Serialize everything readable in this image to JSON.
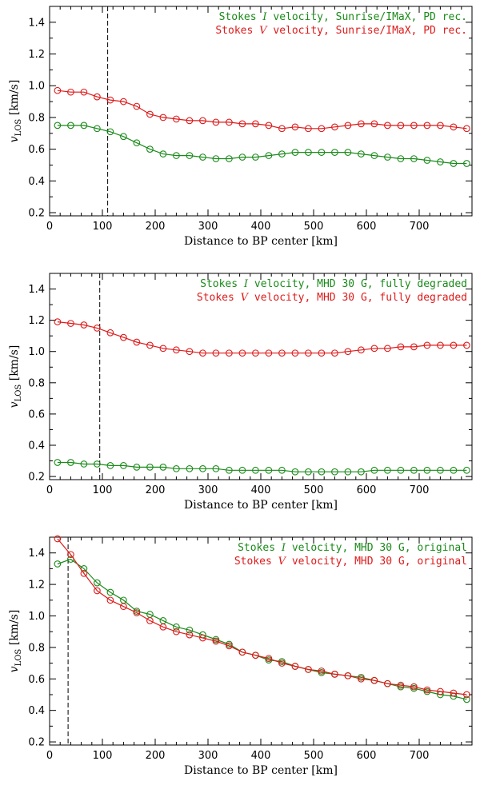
{
  "colors": {
    "green": "#1a8a1a",
    "red": "#dd1a1a",
    "axis": "#000000"
  },
  "chart_data": [
    {
      "type": "line",
      "title": "",
      "xlabel": "Distance to BP center [km]",
      "ylabel": "v_LOS [km/s]",
      "xlim": [
        0,
        800
      ],
      "ylim": [
        0.18,
        1.5
      ],
      "xticks": [
        0,
        100,
        200,
        300,
        400,
        500,
        600,
        700
      ],
      "yticks": [
        0.2,
        0.4,
        0.6,
        0.8,
        1.0,
        1.2,
        1.4
      ],
      "ytick_labels": [
        "0.2",
        "0.4",
        "0.6",
        "0.8",
        "1.0",
        "1.2",
        "1.4"
      ],
      "vline_x": 110,
      "legend_position": "top-right",
      "x": [
        15,
        40,
        65,
        90,
        115,
        140,
        165,
        190,
        215,
        240,
        265,
        290,
        315,
        340,
        365,
        390,
        415,
        440,
        465,
        490,
        515,
        540,
        565,
        590,
        615,
        640,
        665,
        690,
        715,
        740,
        765,
        790
      ],
      "series": [
        {
          "name": "Stokes I velocity, Sunrise/IMaX, PD rec.",
          "name_parts": [
            "Stokes ",
            "I",
            " velocity, Sunrise/IMaX, PD rec."
          ],
          "color": "green",
          "values": [
            0.75,
            0.75,
            0.75,
            0.73,
            0.71,
            0.68,
            0.64,
            0.6,
            0.57,
            0.56,
            0.56,
            0.55,
            0.54,
            0.54,
            0.55,
            0.55,
            0.56,
            0.57,
            0.58,
            0.58,
            0.58,
            0.58,
            0.58,
            0.57,
            0.56,
            0.55,
            0.54,
            0.54,
            0.53,
            0.52,
            0.51,
            0.51
          ]
        },
        {
          "name": "Stokes V velocity, Sunrise/IMaX, PD rec.",
          "name_parts": [
            "Stokes ",
            "V",
            " velocity, Sunrise/IMaX, PD rec."
          ],
          "color": "red",
          "values": [
            0.97,
            0.96,
            0.96,
            0.93,
            0.91,
            0.9,
            0.87,
            0.82,
            0.8,
            0.79,
            0.78,
            0.78,
            0.77,
            0.77,
            0.76,
            0.76,
            0.75,
            0.73,
            0.74,
            0.73,
            0.73,
            0.74,
            0.75,
            0.76,
            0.76,
            0.75,
            0.75,
            0.75,
            0.75,
            0.75,
            0.74,
            0.73
          ]
        }
      ]
    },
    {
      "type": "line",
      "title": "",
      "xlabel": "Distance to BP center [km]",
      "ylabel": "v_LOS [km/s]",
      "xlim": [
        0,
        800
      ],
      "ylim": [
        0.18,
        1.5
      ],
      "xticks": [
        0,
        100,
        200,
        300,
        400,
        500,
        600,
        700
      ],
      "yticks": [
        0.2,
        0.4,
        0.6,
        0.8,
        1.0,
        1.2,
        1.4
      ],
      "ytick_labels": [
        "0.2",
        "0.4",
        "0.6",
        "0.8",
        "1.0",
        "1.2",
        "1.4"
      ],
      "vline_x": 95,
      "legend_position": "top-right",
      "x": [
        15,
        40,
        65,
        90,
        115,
        140,
        165,
        190,
        215,
        240,
        265,
        290,
        315,
        340,
        365,
        390,
        415,
        440,
        465,
        490,
        515,
        540,
        565,
        590,
        615,
        640,
        665,
        690,
        715,
        740,
        765,
        790
      ],
      "series": [
        {
          "name": "Stokes I velocity, MHD 30 G, fully degraded",
          "name_parts": [
            "Stokes ",
            "I",
            " velocity, MHD 30 G, fully degraded"
          ],
          "color": "green",
          "values": [
            0.29,
            0.29,
            0.28,
            0.28,
            0.27,
            0.27,
            0.26,
            0.26,
            0.26,
            0.25,
            0.25,
            0.25,
            0.25,
            0.24,
            0.24,
            0.24,
            0.24,
            0.24,
            0.23,
            0.23,
            0.23,
            0.23,
            0.23,
            0.23,
            0.24,
            0.24,
            0.24,
            0.24,
            0.24,
            0.24,
            0.24,
            0.24
          ]
        },
        {
          "name": "Stokes V velocity, MHD 30 G, fully degraded",
          "name_parts": [
            "Stokes ",
            "V",
            " velocity, MHD 30 G, fully degraded"
          ],
          "color": "red",
          "values": [
            1.19,
            1.18,
            1.17,
            1.15,
            1.12,
            1.09,
            1.06,
            1.04,
            1.02,
            1.01,
            1.0,
            0.99,
            0.99,
            0.99,
            0.99,
            0.99,
            0.99,
            0.99,
            0.99,
            0.99,
            0.99,
            0.99,
            1.0,
            1.01,
            1.02,
            1.02,
            1.03,
            1.03,
            1.04,
            1.04,
            1.04,
            1.04
          ]
        }
      ]
    },
    {
      "type": "line",
      "title": "",
      "xlabel": "Distance to BP center [km]",
      "ylabel": "v_LOS [km/s]",
      "xlim": [
        0,
        800
      ],
      "ylim": [
        0.18,
        1.5
      ],
      "xticks": [
        0,
        100,
        200,
        300,
        400,
        500,
        600,
        700
      ],
      "yticks": [
        0.2,
        0.4,
        0.6,
        0.8,
        1.0,
        1.2,
        1.4
      ],
      "ytick_labels": [
        "0.2",
        "0.4",
        "0.6",
        "0.8",
        "1.0",
        "1.2",
        "1.4"
      ],
      "vline_x": 35,
      "legend_position": "top-right",
      "x": [
        15,
        40,
        65,
        90,
        115,
        140,
        165,
        190,
        215,
        240,
        265,
        290,
        315,
        340,
        365,
        390,
        415,
        440,
        465,
        490,
        515,
        540,
        565,
        590,
        615,
        640,
        665,
        690,
        715,
        740,
        765,
        790
      ],
      "series": [
        {
          "name": "Stokes I velocity, MHD 30 G, original",
          "name_parts": [
            "Stokes ",
            "I",
            " velocity, MHD 30 G, original"
          ],
          "color": "green",
          "values": [
            1.33,
            1.36,
            1.3,
            1.21,
            1.15,
            1.1,
            1.03,
            1.01,
            0.97,
            0.93,
            0.91,
            0.88,
            0.85,
            0.82,
            0.77,
            0.75,
            0.72,
            0.71,
            0.68,
            0.66,
            0.64,
            0.63,
            0.62,
            0.61,
            0.59,
            0.57,
            0.55,
            0.54,
            0.52,
            0.5,
            0.49,
            0.47
          ]
        },
        {
          "name": "Stokes V velocity, MHD 30 G, original",
          "name_parts": [
            "Stokes ",
            "V",
            " velocity, MHD 30 G, original"
          ],
          "color": "red",
          "values": [
            1.49,
            1.39,
            1.27,
            1.16,
            1.1,
            1.06,
            1.02,
            0.97,
            0.93,
            0.9,
            0.88,
            0.86,
            0.84,
            0.81,
            0.77,
            0.75,
            0.73,
            0.7,
            0.68,
            0.66,
            0.65,
            0.63,
            0.62,
            0.6,
            0.59,
            0.57,
            0.56,
            0.55,
            0.53,
            0.52,
            0.51,
            0.5
          ]
        }
      ]
    }
  ]
}
